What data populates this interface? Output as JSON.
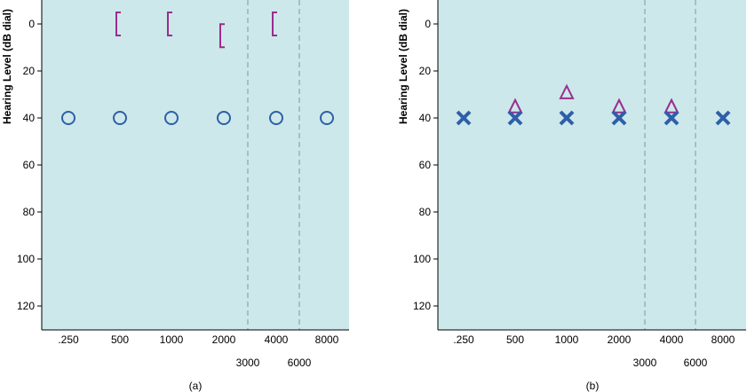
{
  "chart_data": [
    {
      "type": "scatter",
      "panel_label": "(a)",
      "ylabel": "Hearing Level (dB dial)",
      "y_reversed": true,
      "ylim": [
        -10,
        130
      ],
      "yticks": [
        0,
        20,
        40,
        60,
        80,
        100,
        120
      ],
      "x_categories": [
        ".250",
        "500",
        "1000",
        "2000",
        "4000",
        "8000"
      ],
      "x_mid_categories": [
        "3000",
        "6000"
      ],
      "background": "#cce8ea",
      "series": [
        {
          "marker": "bracket-left",
          "color": "#9b2d8e",
          "points": [
            {
              "x": "500",
              "y": 0
            },
            {
              "x": "1000",
              "y": 0
            },
            {
              "x": "2000",
              "y": 5
            },
            {
              "x": "4000",
              "y": 0
            }
          ]
        },
        {
          "marker": "circle",
          "color": "#2e5fa8",
          "points": [
            {
              "x": ".250",
              "y": 40
            },
            {
              "x": "500",
              "y": 40
            },
            {
              "x": "1000",
              "y": 40
            },
            {
              "x": "2000",
              "y": 40
            },
            {
              "x": "4000",
              "y": 40
            },
            {
              "x": "8000",
              "y": 40
            }
          ]
        }
      ]
    },
    {
      "type": "scatter",
      "panel_label": "(b)",
      "ylabel": "Hearing Level (dB dial)",
      "y_reversed": true,
      "ylim": [
        -10,
        130
      ],
      "yticks": [
        0,
        20,
        40,
        60,
        80,
        100,
        120
      ],
      "x_categories": [
        ".250",
        "500",
        "1000",
        "2000",
        "4000",
        "8000"
      ],
      "x_mid_categories": [
        "3000",
        "6000"
      ],
      "background": "#cce8ea",
      "series": [
        {
          "marker": "triangle",
          "color": "#9b2d8e",
          "points": [
            {
              "x": "500",
              "y": 35
            },
            {
              "x": "1000",
              "y": 29
            },
            {
              "x": "2000",
              "y": 35
            },
            {
              "x": "4000",
              "y": 35
            }
          ]
        },
        {
          "marker": "x",
          "color": "#2e5fa8",
          "points": [
            {
              "x": ".250",
              "y": 40
            },
            {
              "x": "500",
              "y": 40
            },
            {
              "x": "1000",
              "y": 40
            },
            {
              "x": "2000",
              "y": 40
            },
            {
              "x": "4000",
              "y": 40
            },
            {
              "x": "8000",
              "y": 40
            }
          ]
        }
      ]
    }
  ]
}
